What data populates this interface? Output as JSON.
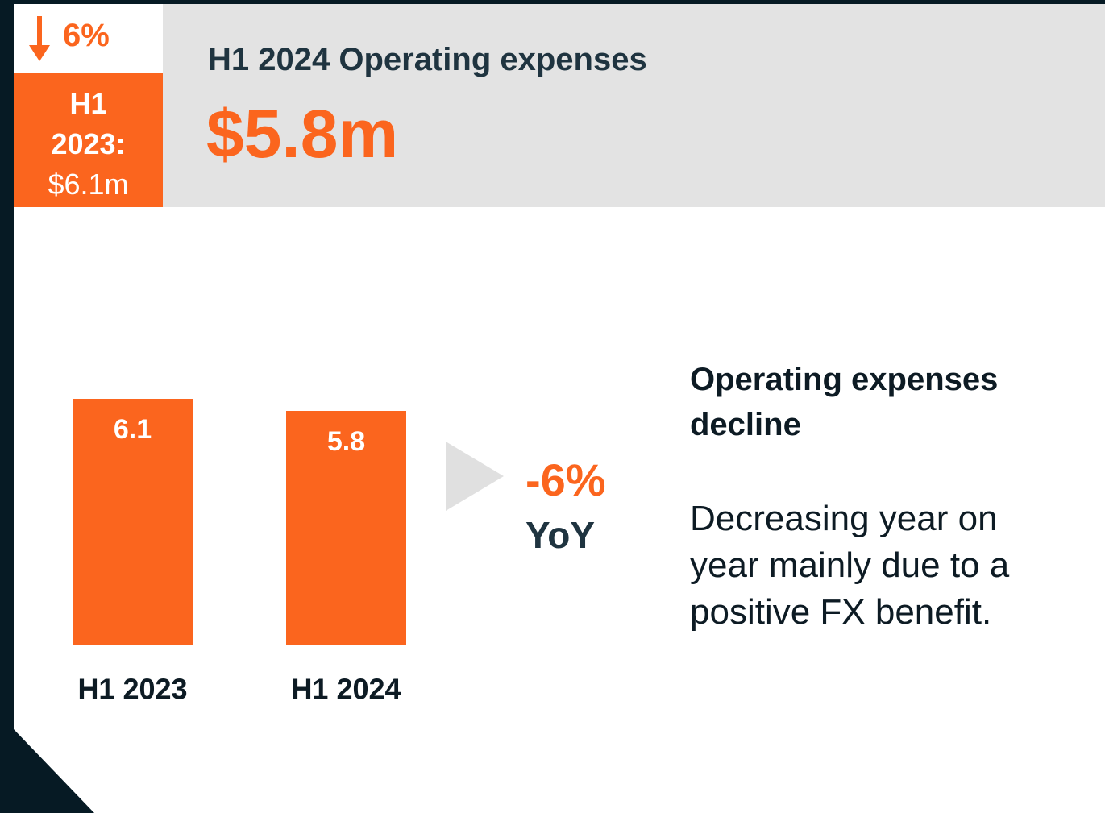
{
  "badge": {
    "change": "6%",
    "label": "H1 2023:",
    "value": "$6.1m"
  },
  "header": {
    "title": "H1 2024 Operating expenses",
    "value": "$5.8m"
  },
  "chart_data": {
    "type": "bar",
    "categories": [
      "H1 2023",
      "H1 2024"
    ],
    "values": [
      6.1,
      5.8
    ],
    "color": "#fb651e"
  },
  "change": {
    "value": "-6%",
    "label": "YoY"
  },
  "commentary": {
    "heading": "Operating expenses decline",
    "body": "Decreasing year on year mainly due to a positive FX benefit."
  }
}
